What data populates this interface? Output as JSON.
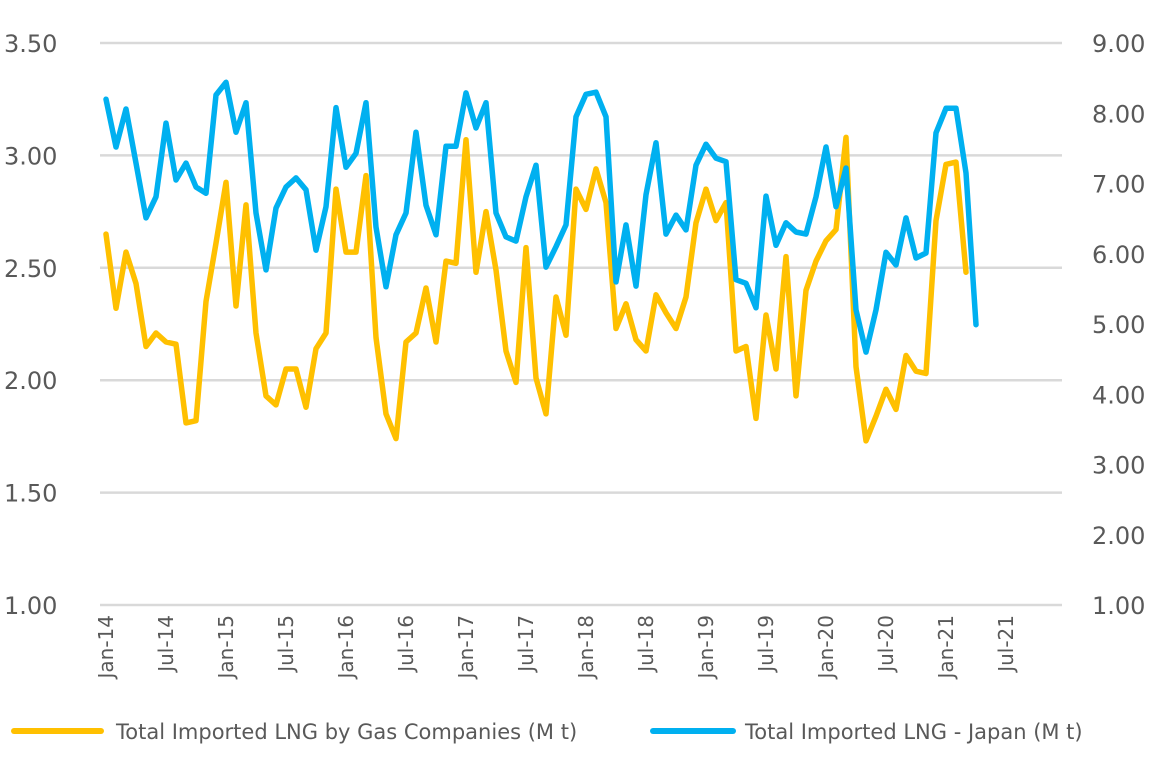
{
  "chart_data": {
    "type": "line",
    "title": "",
    "xlabel": "",
    "ylabel": "",
    "y2label": "",
    "x_start": "Jan-14",
    "x_step": "month",
    "x_ticks": [
      "Jan-14",
      "Jul-14",
      "Jan-15",
      "Jul-15",
      "Jan-16",
      "Jul-16",
      "Jan-17",
      "Jul-17",
      "Jan-18",
      "Jul-18",
      "Jan-19",
      "Jul-19",
      "Jan-20",
      "Jul-20",
      "Jan-21",
      "Jul-21"
    ],
    "x_range_months": [
      0,
      90
    ],
    "ylim": [
      1.0,
      3.5
    ],
    "y_ticks": [
      "1.00",
      "1.50",
      "2.00",
      "2.50",
      "3.00",
      "3.50"
    ],
    "y2lim": [
      1.0,
      9.0
    ],
    "y2_ticks": [
      "1.00",
      "2.00",
      "3.00",
      "4.00",
      "5.00",
      "6.00",
      "7.00",
      "8.00",
      "9.00"
    ],
    "grid": true,
    "legend_position": "bottom",
    "series": [
      {
        "name": "Total Imported LNG by Gas Companies (M t)",
        "axis": "left",
        "color": "#FFC000",
        "values": [
          2.65,
          2.32,
          2.57,
          2.43,
          2.15,
          2.21,
          2.17,
          2.16,
          1.81,
          1.82,
          2.35,
          2.61,
          2.88,
          2.33,
          2.78,
          2.21,
          1.93,
          1.89,
          2.05,
          2.05,
          1.88,
          2.14,
          2.21,
          2.85,
          2.57,
          2.57,
          2.91,
          2.19,
          1.85,
          1.74,
          2.17,
          2.21,
          2.41,
          2.17,
          2.53,
          2.52,
          3.07,
          2.48,
          2.75,
          2.49,
          2.13,
          1.99,
          2.59,
          2.01,
          1.85,
          2.37,
          2.2,
          2.85,
          2.76,
          2.94,
          2.79,
          2.23,
          2.34,
          2.18,
          2.13,
          2.38,
          2.3,
          2.23,
          2.37,
          2.7,
          2.85,
          2.71,
          2.79,
          2.13,
          2.15,
          1.83,
          2.29,
          2.05,
          2.55,
          1.93,
          2.4,
          2.53,
          2.62,
          2.67,
          3.08,
          2.06,
          1.73,
          1.84,
          1.96,
          1.87,
          2.11,
          2.04,
          2.03,
          2.71,
          2.96,
          2.97,
          2.48
        ]
      },
      {
        "name": "Total Imported LNG - Japan (M t)",
        "axis": "right",
        "color": "#00B0F0",
        "values": [
          8.2,
          7.52,
          8.06,
          7.29,
          6.51,
          6.81,
          7.86,
          7.05,
          7.29,
          6.95,
          6.86,
          8.26,
          8.44,
          7.73,
          8.15,
          6.58,
          5.77,
          6.65,
          6.95,
          7.08,
          6.91,
          6.05,
          6.67,
          8.08,
          7.23,
          7.43,
          8.15,
          6.38,
          5.53,
          6.27,
          6.58,
          7.73,
          6.69,
          6.27,
          7.53,
          7.53,
          8.29,
          7.79,
          8.15,
          6.58,
          6.24,
          6.18,
          6.81,
          7.26,
          5.81,
          6.1,
          6.41,
          7.95,
          8.27,
          8.3,
          7.95,
          5.6,
          6.41,
          5.54,
          6.84,
          7.58,
          6.28,
          6.55,
          6.34,
          7.26,
          7.56,
          7.36,
          7.31,
          5.63,
          5.58,
          5.23,
          6.82,
          6.12,
          6.44,
          6.31,
          6.28,
          6.81,
          7.52,
          6.67,
          7.22,
          5.2,
          4.6,
          5.2,
          6.02,
          5.84,
          6.51,
          5.94,
          6.01,
          7.72,
          8.07,
          8.07,
          7.15,
          4.99
        ]
      }
    ]
  },
  "legend": {
    "items": [
      {
        "label": "Total Imported LNG by Gas Companies (M t)",
        "color": "#FFC000"
      },
      {
        "label": "Total Imported LNG - Japan (M t)",
        "color": "#00B0F0"
      }
    ]
  }
}
